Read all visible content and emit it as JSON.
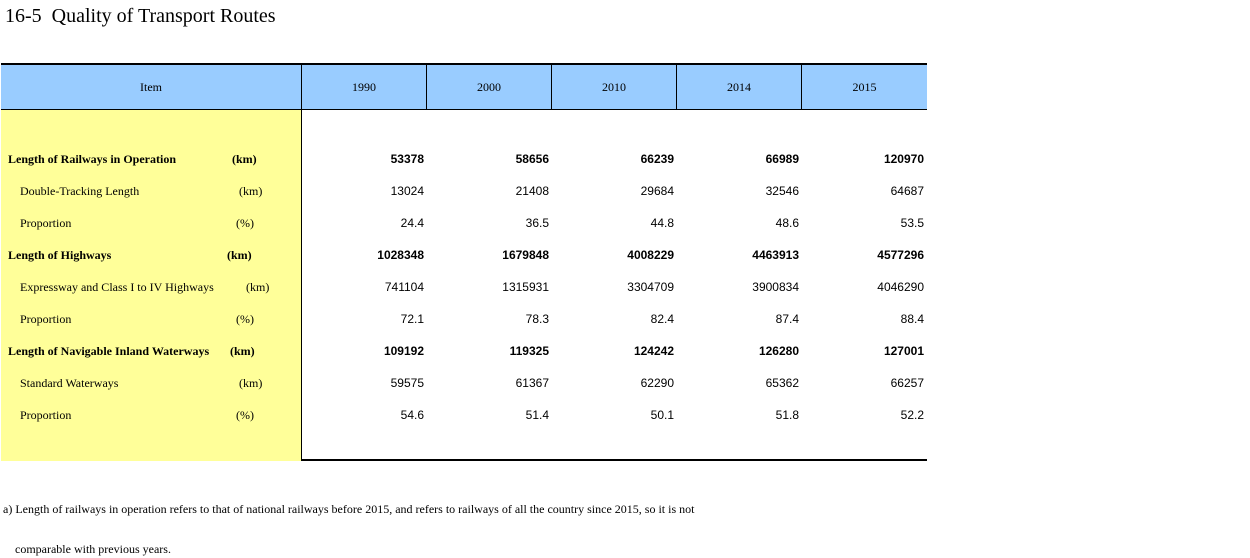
{
  "title": "16-5  Quality of Transport Routes",
  "table": {
    "headers": [
      "Item",
      "1990",
      "2000",
      "2010",
      "2014",
      "2015"
    ],
    "rows": [
      {
        "label": "Length of Railways in Operation",
        "unit": "(km)",
        "values": [
          "53378",
          "58656",
          "66239",
          "66989",
          "120970"
        ],
        "bold": true
      },
      {
        "label": "Double-Tracking Length",
        "unit": "(km)",
        "values": [
          "13024",
          "21408",
          "29684",
          "32546",
          "64687"
        ],
        "bold": false
      },
      {
        "label": "Proportion",
        "unit": "(%)",
        "values": [
          "24.4",
          "36.5",
          "44.8",
          "48.6",
          "53.5"
        ],
        "bold": false
      },
      {
        "label": "Length of Highways",
        "unit": "(km)",
        "values": [
          "1028348",
          "1679848",
          "4008229",
          "4463913",
          "4577296"
        ],
        "bold": true
      },
      {
        "label": "Expressway and Class I to IV Highways",
        "unit": "(km)",
        "values": [
          "741104",
          "1315931",
          "3304709",
          "3900834",
          "4046290"
        ],
        "bold": false
      },
      {
        "label": "Proportion",
        "unit": "(%)",
        "values": [
          "72.1",
          "78.3",
          "82.4",
          "87.4",
          "88.4"
        ],
        "bold": false
      },
      {
        "label": "Length of Navigable Inland Waterways",
        "unit": "(km)",
        "values": [
          "109192",
          "119325",
          "124242",
          "126280",
          "127001"
        ],
        "bold": true
      },
      {
        "label": "Standard Waterways",
        "unit": "(km)",
        "values": [
          "59575",
          "61367",
          "62290",
          "65362",
          "66257"
        ],
        "bold": false
      },
      {
        "label": "Proportion",
        "unit": "(%)",
        "values": [
          "54.6",
          "51.4",
          "50.1",
          "51.8",
          "52.2"
        ],
        "bold": false
      }
    ]
  },
  "notes": {
    "line1": "a) Length of railways in operation refers to that of national railways before 2015, and refers to railways of all the country since 2015, so it is not",
    "line2": "comparable with previous years."
  },
  "colors": {
    "header_bg": "#99ccff",
    "item_bg": "#ffff99"
  }
}
